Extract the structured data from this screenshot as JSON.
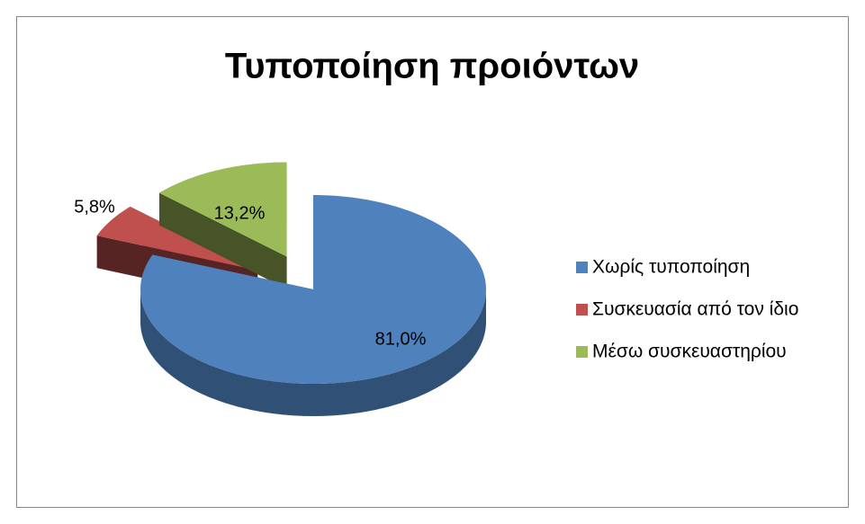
{
  "chart_data": {
    "type": "pie",
    "title": "Τυποποίηση προιόντων",
    "categories": [
      "Χωρίς τυποποίηση",
      "Συσκευασία από τον ίδιο",
      "Μέσω συσκευαστηρίου"
    ],
    "values": [
      81.0,
      5.8,
      13.2
    ],
    "value_labels": [
      "81,0%",
      "5,8%",
      "13,2%"
    ],
    "colors": [
      "#4f81bd",
      "#c0504d",
      "#9bbb59"
    ],
    "legend": "right"
  }
}
